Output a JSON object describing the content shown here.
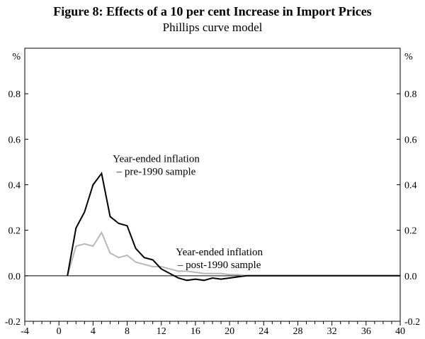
{
  "figure": {
    "title": "Figure 8: Effects of a 10 per cent Increase in Import Prices",
    "subtitle": "Phillips curve model"
  },
  "chart_data": {
    "type": "line",
    "title": "Figure 8: Effects of a 10 per cent Increase in Import Prices",
    "subtitle": "Phillips curve model",
    "xlabel": "",
    "ylabel": "%",
    "unit_label_left": "%",
    "unit_label_right": "%",
    "xlim": [
      -4,
      40
    ],
    "ylim": [
      -0.2,
      1.0
    ],
    "x_major_ticks": [
      -4,
      0,
      4,
      8,
      12,
      16,
      20,
      24,
      28,
      32,
      36,
      40
    ],
    "x_minor_tick_step": 1,
    "y_ticks": [
      -0.2,
      0.0,
      0.2,
      0.4,
      0.6,
      0.8
    ],
    "y_tick_labels": [
      "-0.2",
      "0.0",
      "0.2",
      "0.4",
      "0.6",
      "0.8"
    ],
    "grid": false,
    "zero_line": true,
    "legend_position": "annotations-inside-plot",
    "x": [
      1,
      2,
      3,
      4,
      5,
      6,
      7,
      8,
      9,
      10,
      11,
      12,
      13,
      14,
      15,
      16,
      17,
      18,
      19,
      20,
      21,
      22,
      23,
      24,
      25,
      26,
      27,
      28,
      29,
      30,
      31,
      32,
      33,
      34,
      35,
      36,
      37,
      38,
      39,
      40
    ],
    "series": [
      {
        "name": "Year-ended inflation – pre-1990 sample",
        "color": "#000000",
        "values": [
          0,
          0.21,
          0.28,
          0.4,
          0.45,
          0.26,
          0.23,
          0.22,
          0.12,
          0.08,
          0.07,
          0.03,
          0.01,
          -0.01,
          -0.02,
          -0.015,
          -0.02,
          -0.01,
          -0.015,
          -0.01,
          -0.005,
          0,
          0,
          0,
          0,
          0,
          0,
          0,
          0,
          0,
          0,
          0,
          0,
          0,
          0,
          0,
          0,
          0,
          0,
          0
        ]
      },
      {
        "name": "Year-ended inflation – post-1990 sample",
        "color": "#b8b8b8",
        "values": [
          0,
          0.13,
          0.14,
          0.13,
          0.19,
          0.1,
          0.08,
          0.09,
          0.06,
          0.05,
          0.04,
          0.04,
          0.03,
          0.02,
          0.02,
          0.015,
          0.01,
          0.01,
          0.01,
          0.005,
          0.005,
          0,
          0,
          0,
          0,
          0,
          0,
          0,
          0,
          0,
          0,
          0,
          0,
          0,
          0,
          0,
          0,
          0,
          0,
          0
        ]
      }
    ],
    "annotations": [
      {
        "x": 11.4,
        "y": 0.5,
        "anchor": "middle",
        "lines": [
          "Year-ended inflation",
          "– pre-1990 sample"
        ]
      },
      {
        "x": 18.8,
        "y": 0.09,
        "anchor": "middle",
        "lines": [
          "Year-ended inflation",
          "– post-1990 sample"
        ]
      }
    ]
  }
}
